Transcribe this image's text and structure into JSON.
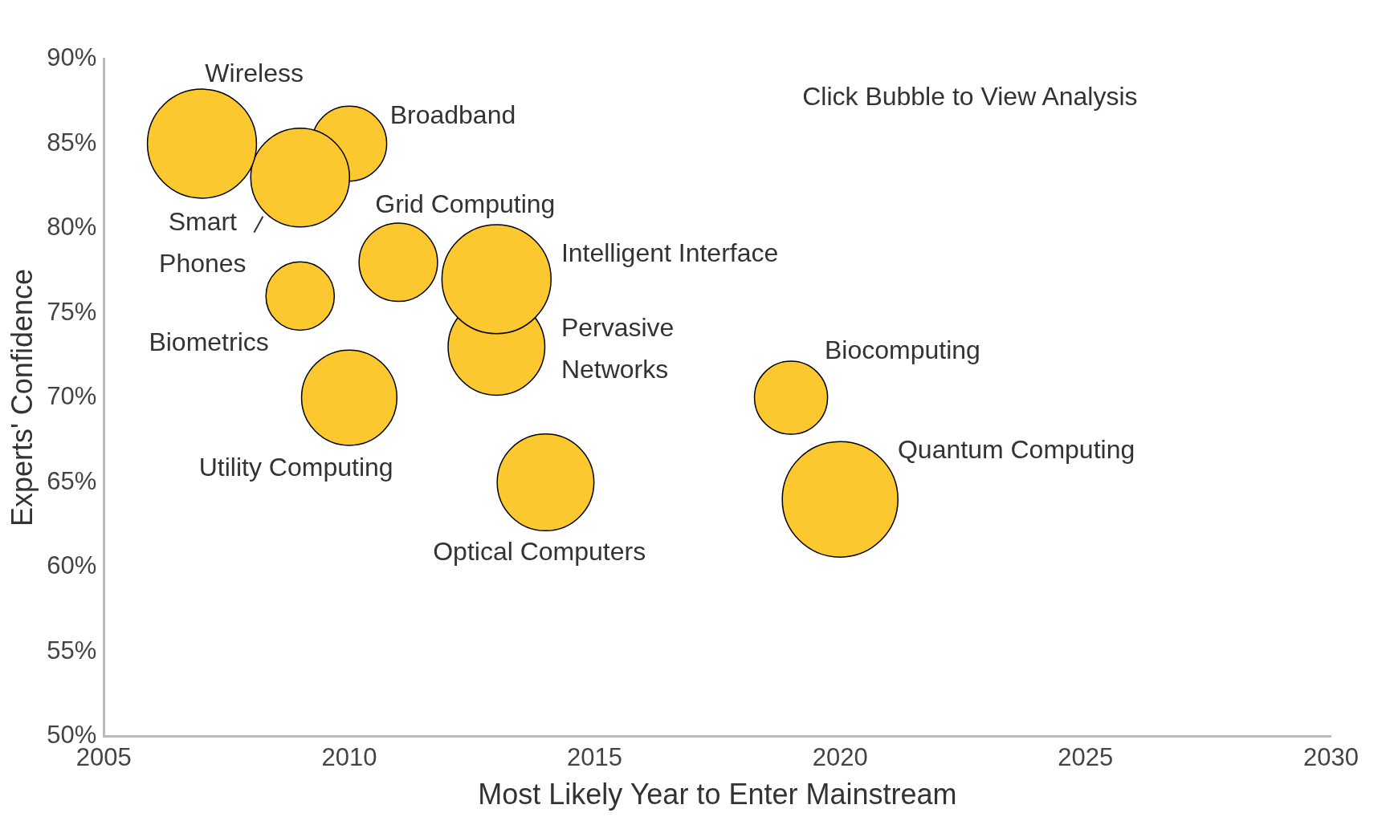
{
  "chart_data": {
    "type": "bubble",
    "xlabel": "Most Likely Year to Enter Mainstream",
    "ylabel": "Experts' Confidence",
    "annotations": [
      "Click Bubble to View Analysis"
    ],
    "xlim": [
      2005,
      2030
    ],
    "xticks": [
      2005,
      2010,
      2015,
      2020,
      2025,
      2030
    ],
    "ylim": [
      50,
      90
    ],
    "yticks": [
      {
        "value": 50,
        "label": "50%"
      },
      {
        "value": 55,
        "label": "55%"
      },
      {
        "value": 60,
        "label": "60%"
      },
      {
        "value": 65,
        "label": "65%"
      },
      {
        "value": 70,
        "label": "70%"
      },
      {
        "value": 75,
        "label": "75%"
      },
      {
        "value": 80,
        "label": "80%"
      },
      {
        "value": 85,
        "label": "85%"
      },
      {
        "value": 90,
        "label": "90%"
      }
    ],
    "grid": false,
    "legend": false,
    "series": [
      {
        "name": "Wireless",
        "color": "#fcc830",
        "x": [
          2007
        ],
        "values": [
          85
        ],
        "sizes": [
          0.89
        ]
      },
      {
        "name": "Smart Phones",
        "color": "#fcc830",
        "x": [
          2009
        ],
        "values": [
          83
        ],
        "sizes": [
          0.73
        ]
      },
      {
        "name": "Broadband",
        "color": "#fcc830",
        "x": [
          2010
        ],
        "values": [
          85
        ],
        "sizes": [
          0.42
        ]
      },
      {
        "name": "Grid Computing",
        "color": "#fcc830",
        "x": [
          2011
        ],
        "values": [
          78
        ],
        "sizes": [
          0.46
        ]
      },
      {
        "name": "Intelligent Interface",
        "color": "#fcc830",
        "x": [
          2013
        ],
        "values": [
          77
        ],
        "sizes": [
          0.89
        ]
      },
      {
        "name": "Biometrics",
        "color": "#fcc830",
        "x": [
          2009
        ],
        "values": [
          76
        ],
        "sizes": [
          0.35
        ]
      },
      {
        "name": "Pervasive Networks",
        "color": "#fcc830",
        "x": [
          2013
        ],
        "values": [
          73
        ],
        "sizes": [
          0.7
        ]
      },
      {
        "name": "Utility Computing",
        "color": "#fcc830",
        "x": [
          2010
        ],
        "values": [
          70
        ],
        "sizes": [
          0.68
        ]
      },
      {
        "name": "Biocomputing",
        "color": "#fcc830",
        "x": [
          2019
        ],
        "values": [
          70
        ],
        "sizes": [
          0.4
        ]
      },
      {
        "name": "Optical Computers",
        "color": "#fcc830",
        "x": [
          2014
        ],
        "values": [
          65
        ],
        "sizes": [
          0.7
        ]
      },
      {
        "name": "Quantum Computing",
        "color": "#fcc830",
        "x": [
          2020
        ],
        "values": [
          64
        ],
        "sizes": [
          1
        ]
      }
    ]
  }
}
